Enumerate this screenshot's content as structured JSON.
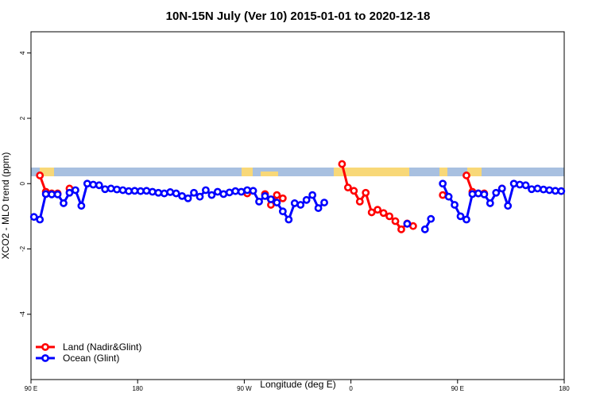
{
  "chart_data": {
    "type": "line",
    "title": "10N-15N July (Ver 10)   2015-01-01 to 2020-12-18",
    "x_label": "Longitude (deg E)",
    "y_label": "XCO2 - MLO trend (ppm)",
    "x": [
      92.5,
      97.5,
      102.5,
      107.5,
      112.5,
      117.5,
      122.5,
      127.5,
      132.5,
      137.5,
      142.5,
      147.5,
      152.5,
      157.5,
      162.5,
      167.5,
      172.5,
      177.5,
      182.5,
      187.5,
      192.5,
      197.5,
      202.5,
      207.5,
      212.5,
      217.5,
      222.5,
      227.5,
      232.5,
      237.5,
      242.5,
      247.5,
      252.5,
      257.5,
      262.5,
      267.5,
      272.5,
      277.5,
      282.5,
      287.5,
      292.5,
      297.5,
      302.5,
      307.5,
      312.5,
      317.5,
      322.5,
      327.5,
      332.5,
      337.5,
      342.5,
      347.5,
      352.5,
      357.5,
      362.5,
      367.5,
      372.5,
      377.5,
      382.5,
      387.5,
      392.5,
      397.5,
      402.5,
      407.5,
      412.5,
      417.5,
      422.5,
      427.5,
      432.5,
      437.5,
      442.5,
      447.5,
      452.5,
      457.5,
      462.5,
      467.5,
      472.5,
      477.5,
      482.5,
      487.5,
      492.5,
      497.5,
      502.5,
      507.5,
      512.5,
      517.5,
      522.5,
      527.5,
      532.5,
      537.5
    ],
    "series": [
      {
        "name": "Land (Nadir&Glint)",
        "color": "#ff0000",
        "values": [
          null,
          0.25,
          -0.25,
          -0.3,
          -0.3,
          null,
          -0.15,
          null,
          null,
          null,
          null,
          null,
          null,
          null,
          null,
          null,
          null,
          null,
          null,
          null,
          null,
          null,
          null,
          null,
          null,
          null,
          null,
          null,
          null,
          null,
          null,
          null,
          null,
          null,
          null,
          null,
          -0.3,
          null,
          null,
          -0.32,
          -0.65,
          -0.35,
          -0.45,
          null,
          null,
          null,
          null,
          null,
          null,
          null,
          null,
          null,
          0.6,
          -0.12,
          -0.22,
          -0.55,
          -0.28,
          -0.88,
          -0.8,
          -0.9,
          -1.0,
          -1.15,
          -1.4,
          -1.22,
          -1.3,
          null,
          null,
          null,
          null,
          -0.35,
          null,
          null,
          null,
          0.25,
          -0.25,
          -0.3,
          -0.3,
          null,
          null,
          -0.15,
          null,
          null,
          null,
          null,
          null,
          null,
          null,
          null,
          null,
          null
        ]
      },
      {
        "name": "Ocean (Glint)",
        "color": "#0000ff",
        "values": [
          -1.02,
          -1.1,
          -0.32,
          -0.33,
          -0.33,
          -0.6,
          -0.28,
          -0.2,
          -0.68,
          0.0,
          -0.03,
          -0.05,
          -0.17,
          -0.15,
          -0.18,
          -0.2,
          -0.23,
          -0.22,
          -0.23,
          -0.22,
          -0.25,
          -0.28,
          -0.3,
          -0.26,
          -0.3,
          -0.38,
          -0.45,
          -0.28,
          -0.4,
          -0.2,
          -0.35,
          -0.25,
          -0.32,
          -0.27,
          -0.23,
          -0.25,
          -0.2,
          -0.22,
          -0.55,
          -0.38,
          -0.48,
          -0.58,
          -0.85,
          -1.1,
          -0.6,
          -0.65,
          -0.5,
          -0.35,
          -0.75,
          -0.58,
          null,
          null,
          null,
          null,
          null,
          null,
          null,
          null,
          null,
          null,
          null,
          null,
          null,
          -1.23,
          null,
          null,
          -1.4,
          -1.08,
          null,
          0.0,
          -0.4,
          -0.65,
          -1.0,
          -1.1,
          -0.32,
          -0.3,
          -0.33,
          -0.6,
          -0.28,
          -0.15,
          -0.68,
          0.0,
          -0.03,
          -0.05,
          -0.17,
          -0.15,
          -0.18,
          -0.2,
          -0.22,
          -0.23
        ]
      }
    ],
    "xlim": [
      90,
      540
    ],
    "xticks": [
      {
        "value": 90,
        "label": "90 E"
      },
      {
        "value": 180,
        "label": "180"
      },
      {
        "value": 270,
        "label": "90 W"
      },
      {
        "value": 360,
        "label": "0"
      },
      {
        "value": 450,
        "label": "90 E"
      },
      {
        "value": 540,
        "label": "180"
      }
    ],
    "ylim": [
      -6,
      4.65
    ],
    "yticks": [
      -4,
      -2,
      0,
      2,
      4
    ],
    "legend": "bottom-left"
  }
}
